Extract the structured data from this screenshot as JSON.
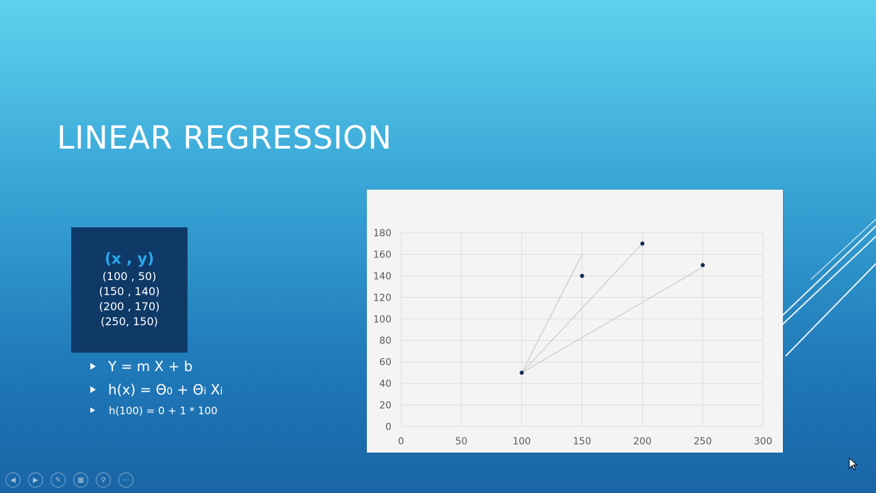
{
  "slide": {
    "title": "LINEAR REGRESSION"
  },
  "points_box": {
    "header": "(x , y)",
    "pairs": [
      "(100 , 50)",
      "(150 , 140)",
      "(200 , 170)",
      "(250, 150)"
    ]
  },
  "bullets": [
    {
      "main": "Y = m X + b"
    },
    {
      "main": "h(x) = Θ0 + Θi Xi",
      "pre": "h(x) = Θ",
      "sub1": "0",
      "mid": " + Θ",
      "sub2": "i",
      "post": " X",
      "sub3": "i"
    },
    {
      "main": "h(100) =  0 + 1 * 100"
    }
  ],
  "chart_data": {
    "type": "scatter",
    "title": "",
    "xlabel": "",
    "ylabel": "",
    "xlim": [
      0,
      300
    ],
    "ylim": [
      0,
      180
    ],
    "xticks": [
      0,
      50,
      100,
      150,
      200,
      250,
      300
    ],
    "yticks": [
      0,
      20,
      40,
      60,
      80,
      100,
      120,
      140,
      160,
      180
    ],
    "grid": true,
    "series": [
      {
        "x": [
          100,
          150,
          200,
          250
        ],
        "y": [
          50,
          140,
          170,
          150
        ]
      }
    ],
    "lines": [
      {
        "from": [
          100,
          50
        ],
        "to": [
          150,
          160
        ]
      },
      {
        "from": [
          100,
          50
        ],
        "to": [
          200,
          170
        ]
      },
      {
        "from": [
          100,
          50
        ],
        "to": [
          250,
          148
        ]
      }
    ],
    "colors": {
      "point": "#0f2b55",
      "line": "#c8c8c8",
      "grid": "#dcdcdc",
      "tick": "#595959"
    }
  },
  "nav_icons": [
    "back-icon",
    "forward-icon",
    "pen-icon",
    "slides-icon",
    "zoom-icon",
    "more-icon"
  ]
}
